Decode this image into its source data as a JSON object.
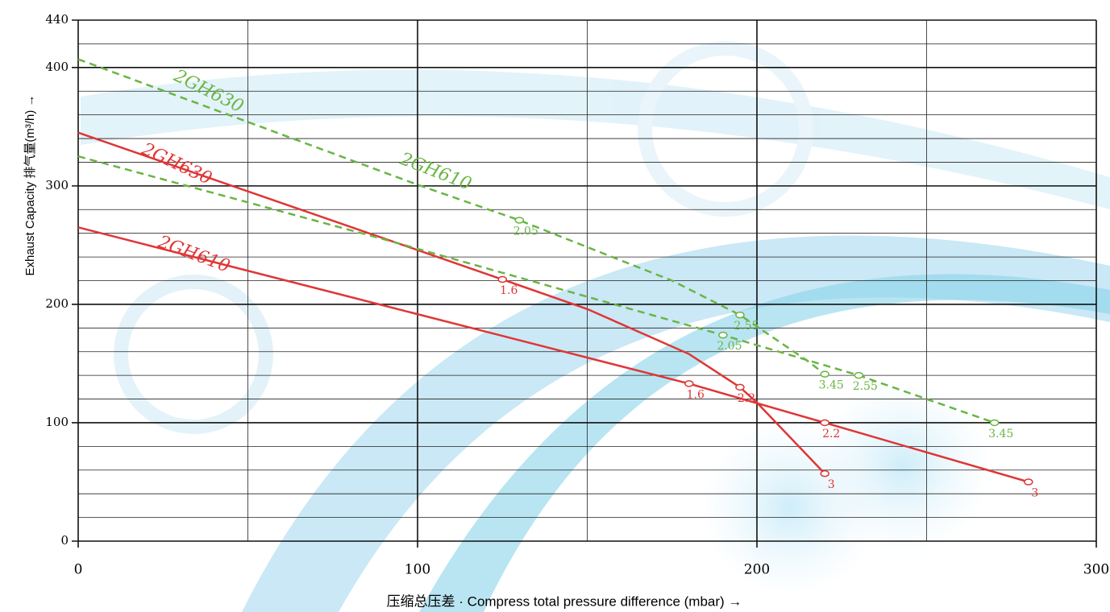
{
  "chart_data": {
    "type": "line",
    "ylabel": "Exhaust Capacity 排气量(m³/h) →",
    "xlabel": "压缩总压差 · Compress total pressure difference (mbar) →",
    "xlim": [
      0,
      300
    ],
    "ylim": [
      0,
      440
    ],
    "xticks": [
      0,
      100,
      200,
      300
    ],
    "yticks": [
      0,
      100,
      200,
      300,
      400,
      440
    ],
    "grid": true,
    "series": [
      {
        "name": "2GH630",
        "color": "#e03535",
        "dash": false,
        "x": [
          0,
          125,
          150,
          180,
          195,
          200,
          220
        ],
        "values": [
          345,
          221,
          196,
          158,
          130,
          117,
          57
        ]
      },
      {
        "name": "2GH610",
        "color": "#e03535",
        "dash": false,
        "x": [
          0,
          180,
          220,
          280
        ],
        "values": [
          265,
          133,
          100,
          50
        ]
      },
      {
        "name": "2GH630",
        "color": "#6ab544",
        "dash": true,
        "x": [
          0,
          100,
          130,
          175,
          195,
          215,
          220
        ],
        "values": [
          407,
          301,
          271,
          220,
          191,
          152,
          141
        ]
      },
      {
        "name": "2GH610",
        "color": "#6ab544",
        "dash": true,
        "x": [
          0,
          90,
          190,
          230,
          270
        ],
        "values": [
          325,
          255,
          174,
          140,
          100
        ]
      }
    ],
    "annotations": [
      {
        "text": "1.6",
        "x": 125,
        "y": 221,
        "color": "#e03535"
      },
      {
        "text": "2.2",
        "x": 195,
        "y": 130,
        "color": "#e03535"
      },
      {
        "text": "3",
        "x": 220,
        "y": 57,
        "color": "#e03535"
      },
      {
        "text": "1.6",
        "x": 180,
        "y": 133,
        "color": "#e03535"
      },
      {
        "text": "2.2",
        "x": 220,
        "y": 100,
        "color": "#e03535"
      },
      {
        "text": "3",
        "x": 280,
        "y": 50,
        "color": "#e03535"
      },
      {
        "text": "2.05",
        "x": 130,
        "y": 271,
        "color": "#6ab544"
      },
      {
        "text": "2.55",
        "x": 195,
        "y": 191,
        "color": "#6ab544"
      },
      {
        "text": "3.45",
        "x": 220,
        "y": 141,
        "color": "#6ab544"
      },
      {
        "text": "2.05",
        "x": 190,
        "y": 174,
        "color": "#6ab544"
      },
      {
        "text": "2.55",
        "x": 230,
        "y": 140,
        "color": "#6ab544"
      },
      {
        "text": "3.45",
        "x": 270,
        "y": 100,
        "color": "#6ab544"
      }
    ]
  }
}
